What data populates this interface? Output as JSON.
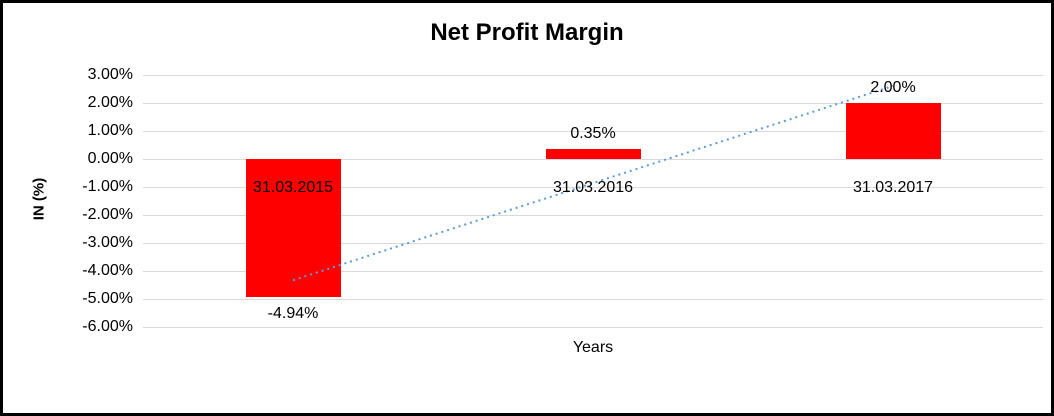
{
  "chart_data": {
    "type": "bar",
    "title": "Net Profit Margin",
    "xlabel": "Years",
    "ylabel": "IN (%)",
    "categories": [
      "31.03.2015",
      "31.03.2016",
      "31.03.2017"
    ],
    "values": [
      -4.94,
      0.35,
      2.0
    ],
    "data_labels": [
      "-4.94%",
      "0.35%",
      "2.00%"
    ],
    "ylim": [
      -6,
      3
    ],
    "ytick_step": 1,
    "ytick_labels": [
      "3.00%",
      "2.00%",
      "1.00%",
      "0.00%",
      "-1.00%",
      "-2.00%",
      "-3.00%",
      "-4.00%",
      "-5.00%",
      "-6.00%"
    ],
    "bar_color": "#ff0000",
    "grid": true,
    "legend": "none",
    "trendline": {
      "style": "dotted",
      "color": "#5b9bd5",
      "start_value": -4.33,
      "end_value": 2.61
    }
  }
}
